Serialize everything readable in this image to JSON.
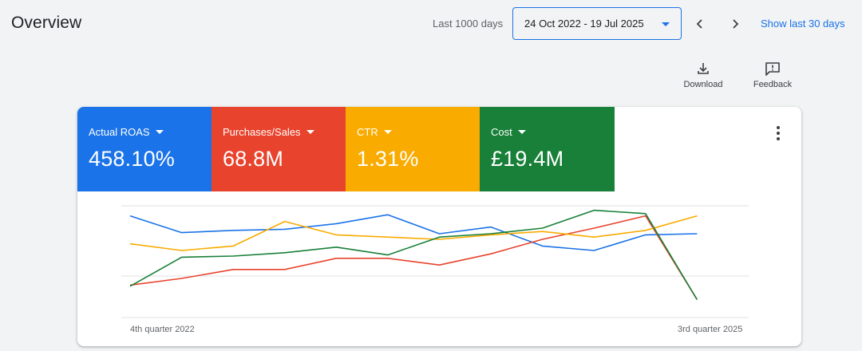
{
  "header": {
    "title": "Overview",
    "range_label": "Last 1000 days",
    "date_range": "24 Oct 2022 - 19 Jul 2025",
    "show_last": "Show last 30 days"
  },
  "tools": {
    "download_label": "Download",
    "feedback_label": "Feedback"
  },
  "metrics": [
    {
      "label": "Actual ROAS",
      "value": "458.10%",
      "color": "#1a73e8"
    },
    {
      "label": "Purchases/Sales",
      "value": "68.8M",
      "color": "#e8432d"
    },
    {
      "label": "CTR",
      "value": "1.31%",
      "color": "#f9ab00"
    },
    {
      "label": "Cost",
      "value": "£19.4M",
      "color": "#188038"
    }
  ],
  "chart_data": {
    "type": "line",
    "x": [
      "4th quarter 2022",
      "",
      "",
      "",
      "",
      "",
      "",
      "",
      "",
      "",
      "",
      "",
      "3rd quarter 2025"
    ],
    "x_tick_labels": [
      "4th quarter 2022",
      "3rd quarter 2025"
    ],
    "grid": true,
    "ylim": [
      0,
      1
    ],
    "series": [
      {
        "color": "#1a73e8",
        "values": [
          0.91,
          0.76,
          0.78,
          0.79,
          0.84,
          0.92,
          0.75,
          0.81,
          0.64,
          0.6,
          0.74,
          0.75,
          null
        ]
      },
      {
        "color": "#e8432d",
        "values": [
          0.29,
          0.35,
          0.43,
          0.43,
          0.53,
          0.53,
          0.47,
          0.57,
          0.7,
          0.8,
          0.91,
          0.16,
          null
        ]
      },
      {
        "color": "#f9ab00",
        "values": [
          0.66,
          0.6,
          0.64,
          0.86,
          0.74,
          0.72,
          0.7,
          0.74,
          0.77,
          0.72,
          0.78,
          0.91,
          null
        ]
      },
      {
        "color": "#188038",
        "values": [
          0.28,
          0.54,
          0.55,
          0.58,
          0.63,
          0.56,
          0.72,
          0.75,
          0.8,
          0.96,
          0.93,
          0.16,
          null
        ]
      }
    ]
  }
}
